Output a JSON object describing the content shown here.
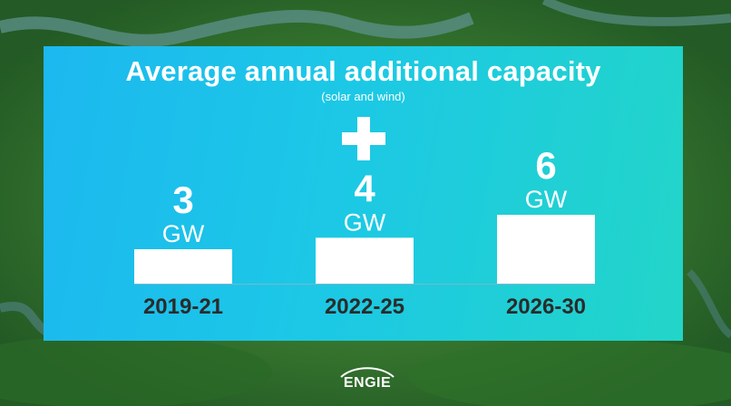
{
  "chart_data": {
    "type": "bar",
    "title": "Average annual additional capacity",
    "subtitle": "(solar and wind)",
    "categories": [
      "2019-21",
      "2022-25",
      "2026-30"
    ],
    "values": [
      3,
      4,
      6
    ],
    "value_labels": [
      "3",
      "4",
      "6"
    ],
    "unit": "GW",
    "ylim": [
      0,
      6
    ],
    "grid": false,
    "bar_color": "#ffffff",
    "category_label_color": "#2b2b2b",
    "panel_colors": [
      "#1cb8f0",
      "#22d5c8"
    ]
  },
  "decorations": {
    "plus_icon": "plus-icon"
  },
  "logo": {
    "text": "ENGIE"
  }
}
